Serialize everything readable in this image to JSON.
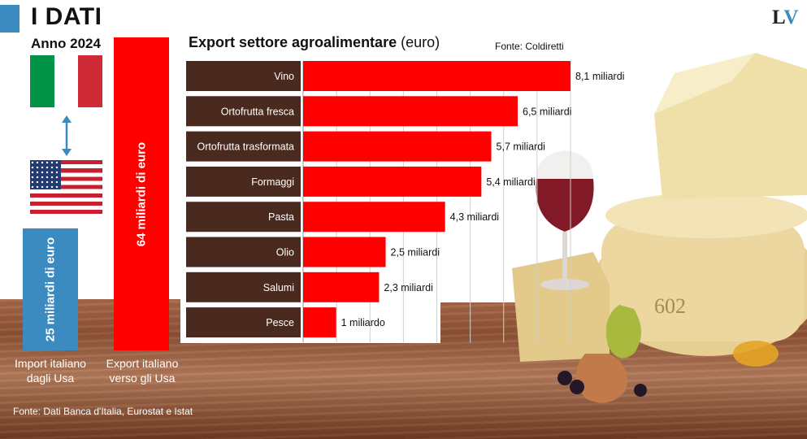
{
  "header": {
    "title": "I DATI",
    "year_label": "Anno 2024"
  },
  "logo": {
    "text_l": "L",
    "text_v": "V"
  },
  "comparison": {
    "import": {
      "value": 25,
      "label": "25 miliardi di euro",
      "caption_line1": "Import italiano",
      "caption_line2": "dagli Usa",
      "color": "#3b8bc1"
    },
    "export": {
      "value": 64,
      "label": "64 miliardi di euro",
      "caption_line1": "Export italiano",
      "caption_line2": "verso gli Usa",
      "color": "#ff0000"
    },
    "source": "Fonte: Dati Banca d'Italia, Eurostat e Istat"
  },
  "flags": {
    "italy": [
      "#009246",
      "#ffffff",
      "#ce2b37"
    ],
    "arrow_color": "#3b8bc1"
  },
  "chart_data": {
    "type": "bar",
    "orientation": "horizontal",
    "title": "Export settore agroalimentare",
    "title_unit": "(euro)",
    "source": "Fonte: Coldiretti",
    "categories": [
      "Vino",
      "Ortofrutta fresca",
      "Ortofrutta trasformata",
      "Formaggi",
      "Pasta",
      "Olio",
      "Salumi",
      "Pesce"
    ],
    "values": [
      8.1,
      6.5,
      5.7,
      5.4,
      4.3,
      2.5,
      2.3,
      1.0
    ],
    "value_labels": [
      "8,1 miliardi",
      "6,5 miliardi",
      "5,7 miliardi",
      "5,4 miliardi",
      "4,3 miliardi",
      "2,5 miliardi",
      "2,3 miliardi",
      "1 miliardo"
    ],
    "xlim": [
      0,
      8.1
    ],
    "grid": true,
    "bar_color": "#ff0000",
    "category_box_color": "#4a2a1f"
  }
}
